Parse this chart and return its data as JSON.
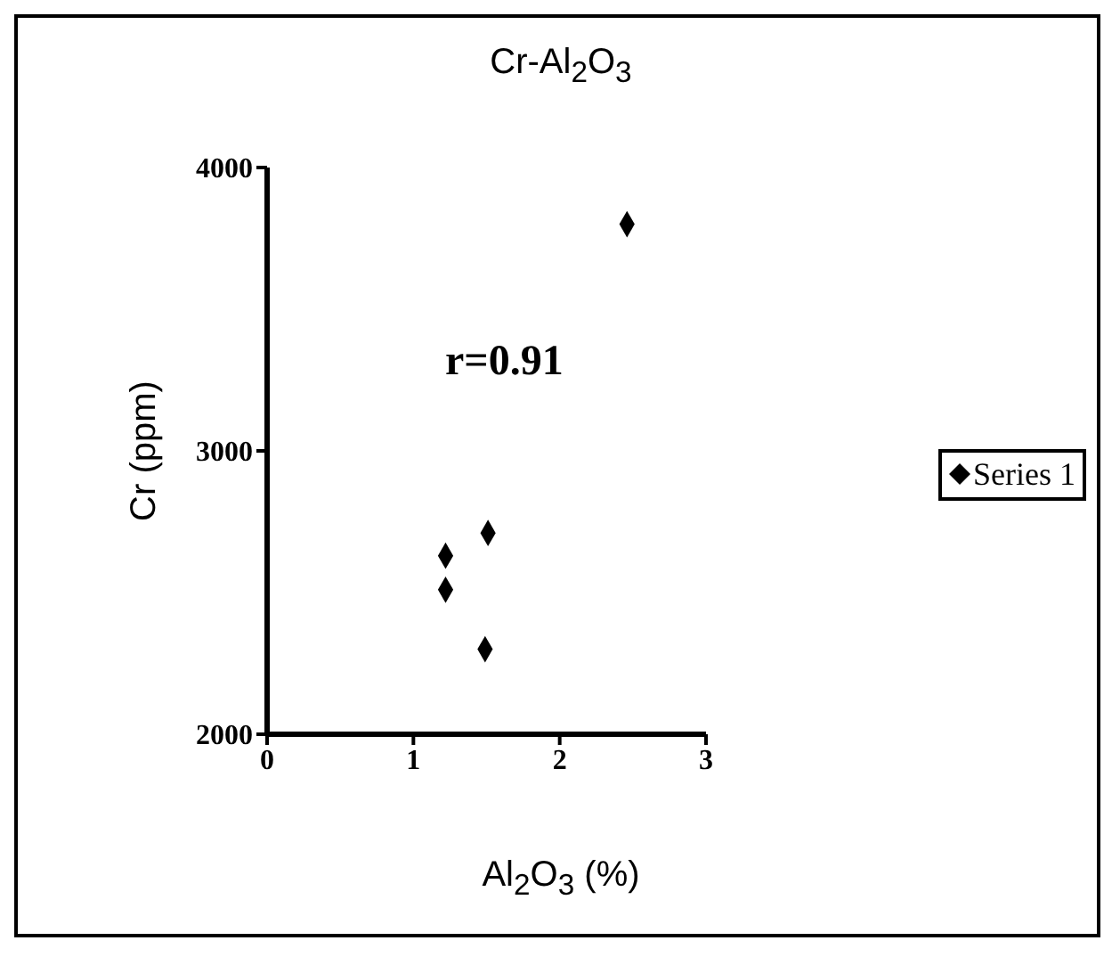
{
  "chart_data": {
    "type": "scatter",
    "title": "Cr-Al$_{2}$O$_{3}$",
    "xlabel": "Al$_{2}$O$_{3}$ (%)",
    "ylabel": "Cr (ppm)",
    "annotations": [
      "r=0.91"
    ],
    "x": [
      2.46,
      1.22,
      1.22,
      1.51,
      1.49
    ],
    "series": [
      {
        "name": "Series 1",
        "color": "#000000",
        "values": [
          3800,
          2630,
          2510,
          2710,
          2300
        ]
      }
    ],
    "xlim": [
      0,
      3
    ],
    "xticks": [
      0,
      1,
      2,
      3
    ],
    "ylim": [
      2000,
      4000
    ],
    "yticks": [
      2000,
      3000,
      4000
    ],
    "marker": "diamond",
    "legend": "right",
    "grid": false
  }
}
